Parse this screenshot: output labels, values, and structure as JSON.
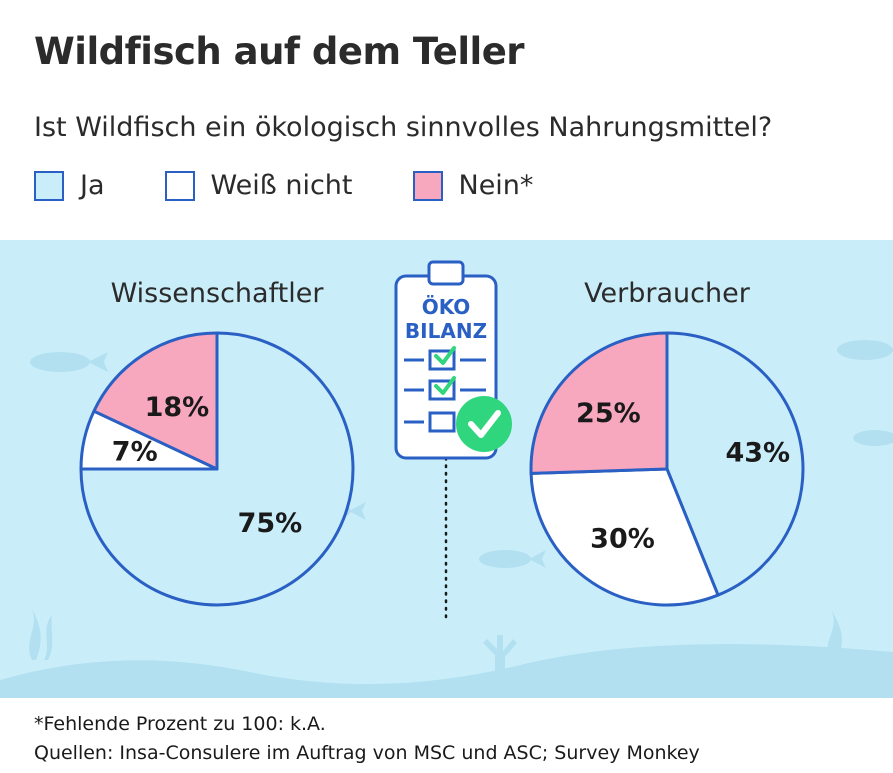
{
  "title": "Wildfisch auf dem Teller",
  "subtitle": "Ist Wildfisch ein ökologisch sinnvolles Nahrungsmittel?",
  "legend": [
    {
      "label": "Ja",
      "color": "#c9eefa"
    },
    {
      "label": "Weiß nicht",
      "color": "#ffffff"
    },
    {
      "label": "Nein*",
      "color": "#f7a8bf"
    }
  ],
  "clipboard": {
    "line1": "ÖKO",
    "line2": "BILANZ"
  },
  "chart_data": [
    {
      "type": "pie",
      "title": "Wissenschaftler",
      "categories": [
        "Ja",
        "Weiß nicht",
        "Nein*"
      ],
      "values": [
        75,
        7,
        18
      ],
      "labels": [
        "75%",
        "7%",
        "18%"
      ],
      "colors": [
        "#c9eefa",
        "#ffffff",
        "#f7a8bf"
      ]
    },
    {
      "type": "pie",
      "title": "Verbraucher",
      "categories": [
        "Ja",
        "Weiß nicht",
        "Nein*"
      ],
      "values": [
        43,
        30,
        25
      ],
      "labels": [
        "43%",
        "30%",
        "25%"
      ],
      "colors": [
        "#c9eefa",
        "#ffffff",
        "#f7a8bf"
      ]
    }
  ],
  "footnote": {
    "line1": "*Fehlende Prozent zu 100: k.A.",
    "line2": "Quellen: Insa-Consulere im Auftrag von MSC und ASC; Survey Monkey"
  },
  "accent": "#2a5fc4",
  "check_color": "#2fd67e"
}
